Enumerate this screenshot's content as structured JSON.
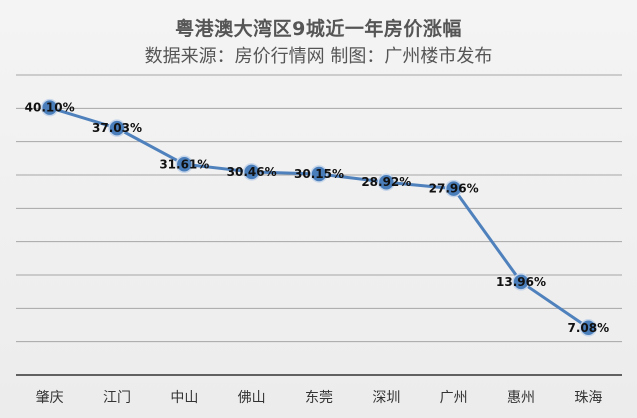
{
  "title": "粤港澳大湾区9城近一年房价涨幅",
  "subtitle": "数据来源：房价行情网 制图：广州楼市发布",
  "colors": {
    "line": "#4f81bd",
    "marker_fill": "#4a7ebb",
    "marker_stroke": "#c7d6ea",
    "grid": "#a6a6a6",
    "axis": "#333333"
  },
  "chart_data": {
    "type": "line",
    "title": "粤港澳大湾区9城近一年房价涨幅",
    "subtitle": "数据来源：房价行情网 制图：广州楼市发布",
    "categories": [
      "肇庆",
      "江门",
      "中山",
      "佛山",
      "东莞",
      "深圳",
      "广州",
      "惠州",
      "珠海"
    ],
    "values": [
      40.1,
      37.03,
      31.61,
      30.46,
      30.15,
      28.92,
      27.96,
      13.96,
      7.08
    ],
    "data_labels": [
      "40.10%",
      "37.03%",
      "31.61%",
      "30.46%",
      "30.15%",
      "28.92%",
      "27.96%",
      "13.96%",
      "7.08%"
    ],
    "ylim": [
      0,
      45
    ],
    "grid": true,
    "legend": "none"
  }
}
